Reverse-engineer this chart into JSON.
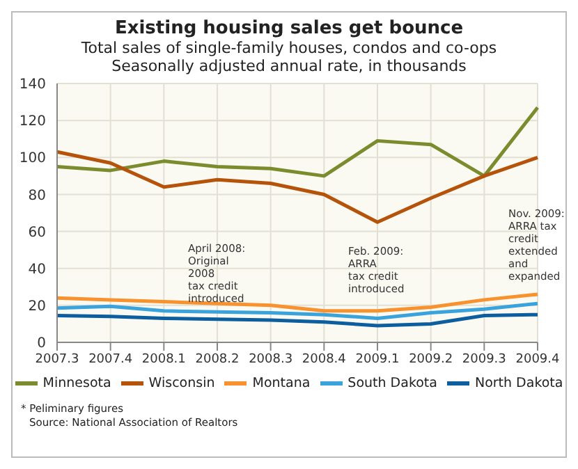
{
  "chart_data": {
    "type": "line",
    "title": "Existing housing sales get bounce",
    "subtitle": "Total sales of single-family houses, condos and co-ops\nSeasonally adjusted annual rate, in thousands",
    "categories": [
      "2007.3",
      "2007.4",
      "2008.1",
      "2008.2",
      "2008.3",
      "2008.4",
      "2009.1",
      "2009.2",
      "2009.3",
      "2009.4"
    ],
    "series": [
      {
        "name": "Minnesota",
        "color": "#7a8c2e",
        "values": [
          95,
          93,
          98,
          95,
          94,
          90,
          109,
          107,
          90,
          127
        ]
      },
      {
        "name": "Wisconsin",
        "color": "#b5530a",
        "values": [
          103,
          97,
          84,
          88,
          86,
          80,
          65,
          78,
          90,
          100
        ]
      },
      {
        "name": "Montana",
        "color": "#f7922e",
        "values": [
          24,
          23,
          22,
          21,
          20,
          17,
          17,
          19,
          23,
          26
        ]
      },
      {
        "name": "South Dakota",
        "color": "#3aa3dc",
        "values": [
          18.5,
          19.5,
          17,
          16.5,
          16,
          15,
          13,
          16,
          18,
          21
        ]
      },
      {
        "name": "North Dakota",
        "color": "#0d5e9e",
        "values": [
          14.5,
          14,
          13,
          12.5,
          12,
          11,
          9,
          10,
          14.5,
          15
        ]
      }
    ],
    "ylim": [
      0,
      140
    ],
    "yticks": [
      0,
      20,
      40,
      60,
      80,
      100,
      120,
      140
    ],
    "grid": true,
    "legend": "bottom",
    "marker": "none",
    "line_style": "solid",
    "annotations": [
      "April 2008:\nOriginal\n2008\ntax credit\nintroduced",
      "Feb. 2009:\nARRA\ntax credit\nintroduced",
      "Nov. 2009:\nARRA tax\ncredit\nextended\nand\nexpanded",
      "* Peliminary figures",
      "Source: National Association of Realtors"
    ]
  }
}
